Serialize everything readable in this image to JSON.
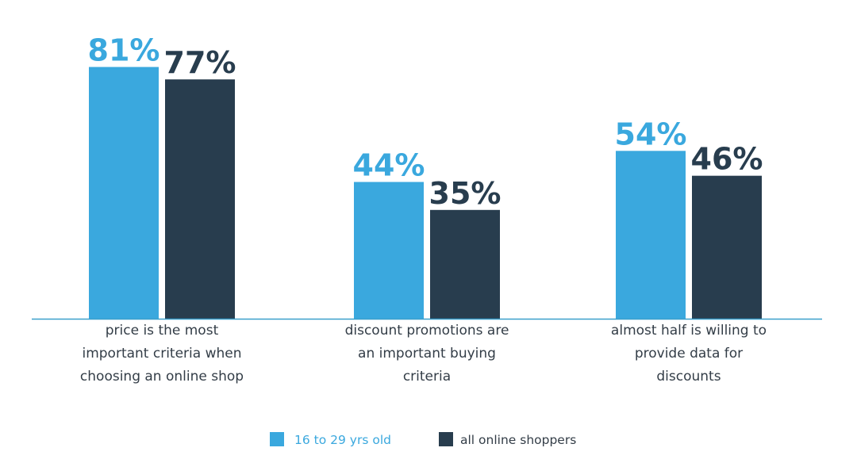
{
  "colors": {
    "series_light": "#3aa8de",
    "series_dark": "#283d4e",
    "axis": "#3aa0cc",
    "label_text": "#333d47"
  },
  "chart_data": {
    "type": "bar",
    "categories": [
      [
        "price is the most",
        "important criteria when",
        "choosing an online shop"
      ],
      [
        "discount promotions are",
        "an important buying",
        "criteria"
      ],
      [
        "almost half is willing to",
        "provide data for",
        "discounts"
      ]
    ],
    "series": [
      {
        "name": "16 to 29 yrs old",
        "values": [
          81,
          44,
          54
        ],
        "labels": [
          "81%",
          "44%",
          "54%"
        ]
      },
      {
        "name": "all online shoppers",
        "values": [
          77,
          35,
          46
        ],
        "labels": [
          "77%",
          "35%",
          "46%"
        ]
      }
    ],
    "unit": "%",
    "ylim": [
      0,
      100
    ],
    "grid": false,
    "legend_position": "bottom-center"
  }
}
